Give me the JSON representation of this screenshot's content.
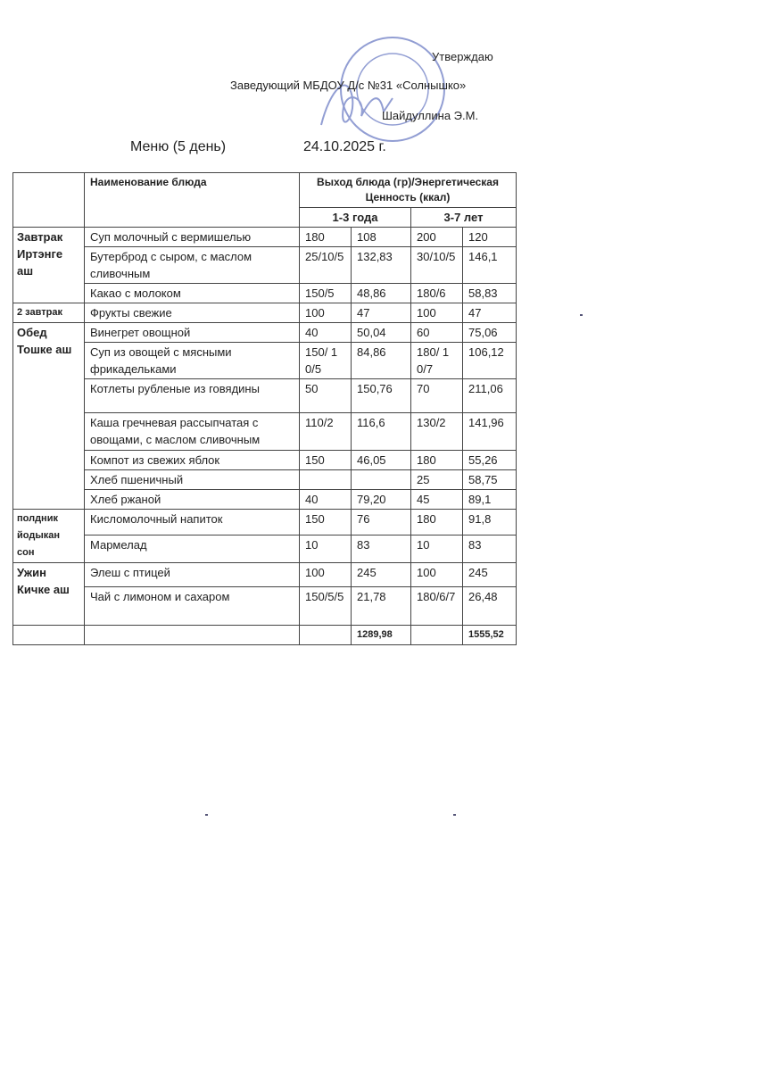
{
  "approval": {
    "approve": "Утверждаю",
    "position": "Заведующий МБДОУ Д/с №31 «Солнышко»",
    "name": "Шайдуллина Э.М."
  },
  "title": {
    "menu": "Меню (5 день)",
    "date": "24.10.2025 г."
  },
  "table": {
    "col_dish": "Наименование блюда",
    "col_output": "Выход блюда (гр)/Энергетическая Ценность (ккал)",
    "age1": "1-3 года",
    "age2": "3-7 лет",
    "groups": [
      {
        "label": "Завтрак Иртэнге аш",
        "rows": [
          {
            "dish": "Суп молочный  с вермишелью",
            "w1": "180",
            "k1": "108",
            "w2": "200",
            "k2": "120"
          },
          {
            "dish": "Бутерброд  с сыром, с маслом сливочным",
            "w1": "25/10/5",
            "k1": "132,83",
            "w2": "30/10/5",
            "k2": "146,1"
          },
          {
            "dish": "Какао с молоком",
            "w1": "150/5",
            "k1": "48,86",
            "w2": "180/6",
            "k2": "58,83"
          }
        ]
      },
      {
        "label": "2 завтрак",
        "rows": [
          {
            "dish": "Фрукты свежие",
            "w1": "100",
            "k1": "47",
            "w2": "100",
            "k2": "47"
          }
        ]
      },
      {
        "label": "Обед Тошке аш",
        "rows": [
          {
            "dish": "Винегрет овощной",
            "w1": "40",
            "k1": "50,04",
            "w2": "60",
            "k2": "75,06"
          },
          {
            "dish": "Суп из овощей с мясными фрикадельками",
            "w1": "150/ 10/5",
            "k1": "84,86",
            "w2": "180/ 10/7",
            "k2": "106,12"
          },
          {
            "dish": "Котлеты рубленые из говядины",
            "w1": "50",
            "k1": "150,76",
            "w2": "70",
            "k2": "211,06"
          },
          {
            "dish": "Каша гречневая рассыпчатая с овощами, с маслом сливочным",
            "w1": "110/2",
            "k1": "116,6",
            "w2": "130/2",
            "k2": "141,96"
          },
          {
            "dish": "Компот из свежих яблок",
            "w1": "150",
            "k1": "46,05",
            "w2": "180",
            "k2": "55,26"
          },
          {
            "dish": "Хлеб пшеничный",
            "w1": "",
            "k1": "",
            "w2": "25",
            "k2": "58,75"
          },
          {
            "dish": "Хлеб ржаной",
            "w1": "40",
            "k1": "79,20",
            "w2": "45",
            "k2": "89,1"
          }
        ]
      },
      {
        "label": "полдник йодыкан сон",
        "rows": [
          {
            "dish": "Кисломолочный напиток",
            "w1": "150",
            "k1": "76",
            "w2": "180",
            "k2": "91,8"
          },
          {
            "dish": "Мармелад",
            "w1": "10",
            "k1": "83",
            "w2": "10",
            "k2": "83"
          }
        ]
      },
      {
        "label": "Ужин Кичке аш",
        "rows": [
          {
            "dish": "Элеш с птицей",
            "w1": "100",
            "k1": "245",
            "w2": "100",
            "k2": "245"
          },
          {
            "dish": "Чай с лимоном и сахаром",
            "w1": "150/5/5",
            "k1": "21,78",
            "w2": "180/6/7",
            "k2": "26,48"
          }
        ]
      }
    ],
    "total1": "1289,98",
    "total2": "1555,52"
  },
  "colors": {
    "stamp": "#3a4fb0",
    "ink": "#222222"
  }
}
